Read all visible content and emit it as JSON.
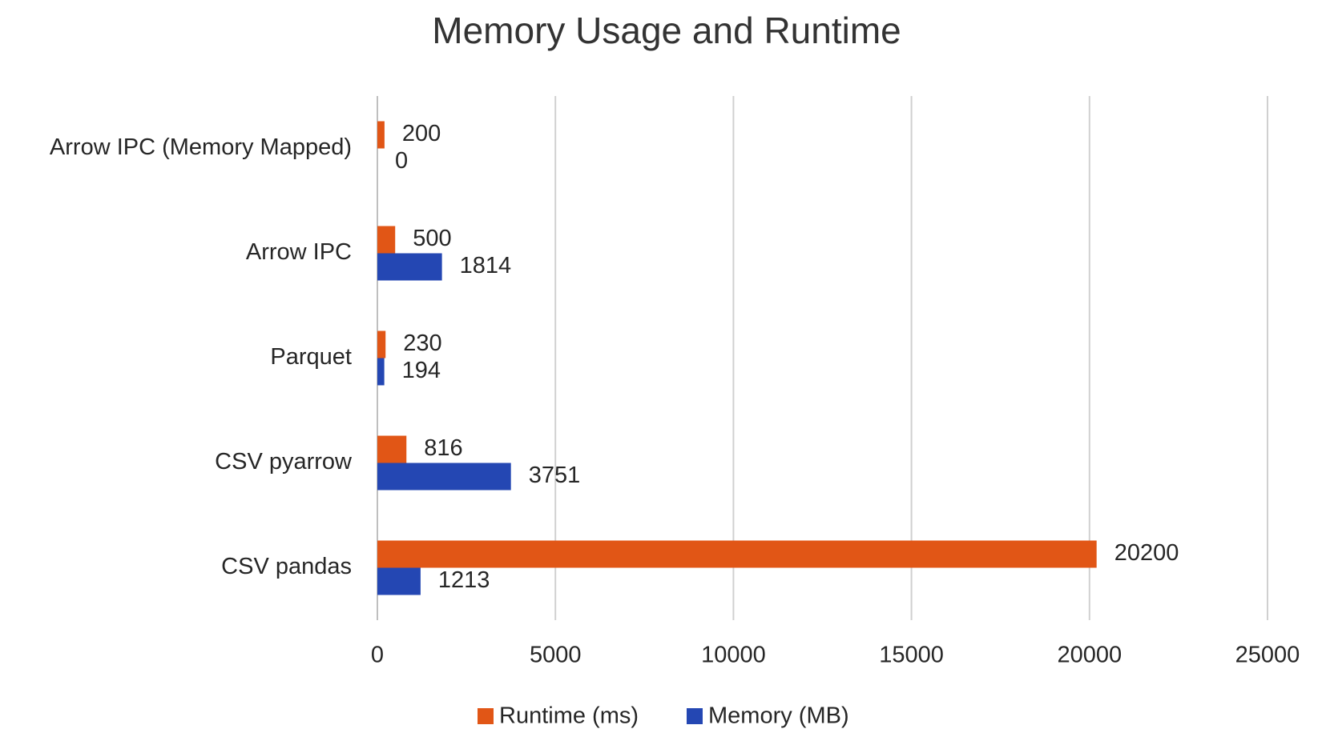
{
  "chart_data": {
    "type": "bar",
    "title": "Memory Usage and Runtime",
    "categories": [
      "Arrow IPC (Memory Mapped)",
      "Arrow IPC",
      "Parquet",
      "CSV pyarrow",
      "CSV pandas"
    ],
    "series": [
      {
        "name": "Runtime (ms)",
        "color": "#e15616",
        "values": [
          200,
          500,
          230,
          816,
          20200
        ]
      },
      {
        "name": "Memory (MB)",
        "color": "#2447b3",
        "values": [
          0,
          1814,
          194,
          3751,
          1213
        ]
      }
    ],
    "xlim": [
      0,
      25000
    ],
    "xticks": [
      0,
      5000,
      10000,
      15000,
      20000,
      25000
    ],
    "grid": true,
    "legend": "bottom"
  }
}
